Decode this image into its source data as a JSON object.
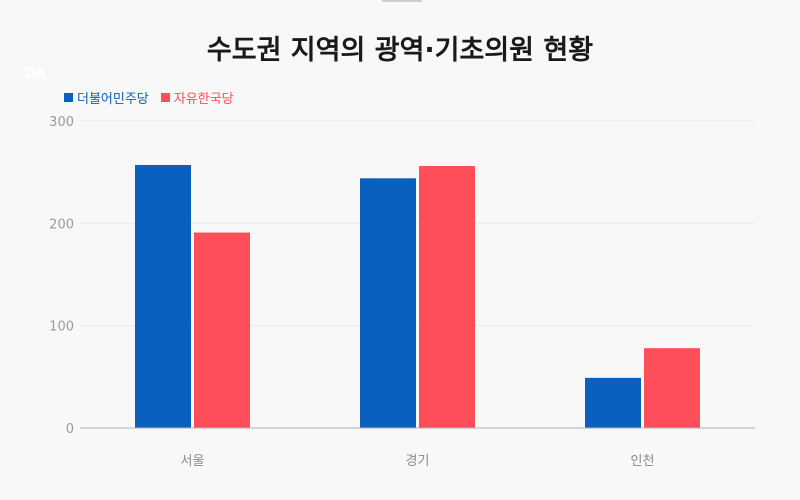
{
  "header": {
    "title": "수도권 지역의 광역·기초의원 현황",
    "logo": "DA"
  },
  "legend": [
    {
      "label": "더불어민주당",
      "color": "#0b5fbe"
    },
    {
      "label": "자유한국당",
      "color": "#ff4d5a"
    }
  ],
  "chart_data": {
    "type": "bar",
    "title": "수도권 지역의 광역·기초의원 현황",
    "categories": [
      "서울",
      "경기",
      "인천"
    ],
    "series": [
      {
        "name": "더불어민주당",
        "color": "#0b5fbe",
        "values": [
          257,
          244,
          49
        ]
      },
      {
        "name": "자유한국당",
        "color": "#ff4d5a",
        "values": [
          191,
          256,
          78
        ]
      }
    ],
    "yticks": [
      0,
      100,
      200,
      300
    ],
    "ylim": [
      0,
      300
    ],
    "grid": true,
    "legend_position": "top-left"
  }
}
